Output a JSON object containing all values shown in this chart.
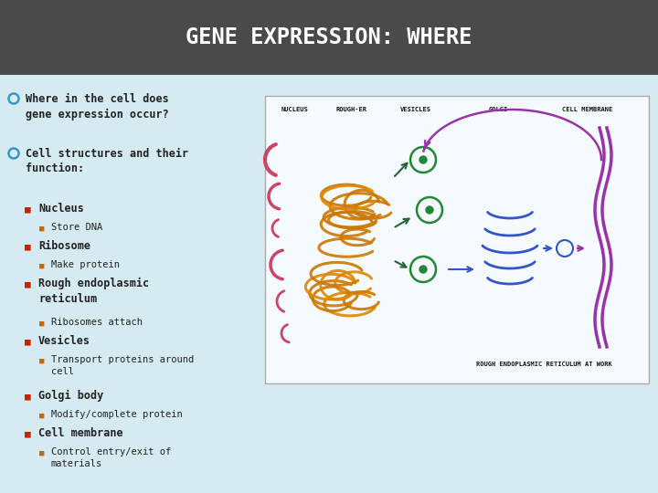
{
  "title": "GENE EXPRESSION: WHERE",
  "title_bg": "#4a4a4a",
  "title_color": "#ffffff",
  "slide_bg": "#d6eaf2",
  "bullet_color_circle": "#3399cc",
  "bullet_color_square": "#cc2200",
  "bullet_color_sub": "#cc6600",
  "text_color": "#222222",
  "bullets": [
    {
      "level": 0,
      "text": "Where in the cell does\ngene expression occur?"
    },
    {
      "level": 0,
      "text": "Cell structures and their\nfunction:"
    },
    {
      "level": 1,
      "text": "Nucleus"
    },
    {
      "level": 2,
      "text": "Store DNA"
    },
    {
      "level": 1,
      "text": "Ribosome"
    },
    {
      "level": 2,
      "text": "Make protein"
    },
    {
      "level": 1,
      "text": "Rough endoplasmic\nreticulum"
    },
    {
      "level": 2,
      "text": "Ribosomes attach"
    },
    {
      "level": 1,
      "text": "Vesicles"
    },
    {
      "level": 2,
      "text": "Transport proteins around\ncell"
    },
    {
      "level": 1,
      "text": "Golgi body"
    },
    {
      "level": 2,
      "text": "Modify/complete protein"
    },
    {
      "level": 1,
      "text": "Cell membrane"
    },
    {
      "level": 2,
      "text": "Control entry/exit of\nmaterials"
    }
  ]
}
